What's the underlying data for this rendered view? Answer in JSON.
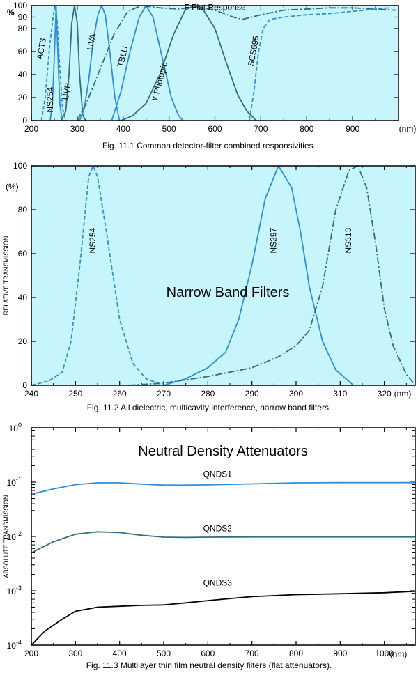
{
  "colors": {
    "plot_bg": "#c6f5fc",
    "frame": "#000000",
    "blue": "#2f8fd8",
    "teal": "#2f6f7f",
    "black": "#000000"
  },
  "chart_data": [
    {
      "id": "fig1",
      "type": "line",
      "caption": "Fig. 11.1  Common detector-filter combined responsivities.",
      "xlabel": "(nm)",
      "ylabel": "%",
      "xlim": [
        200,
        1000
      ],
      "ylim": [
        0,
        100
      ],
      "xticks": [
        200,
        300,
        400,
        500,
        600,
        700,
        800,
        900
      ],
      "yticks": [
        0,
        20,
        40,
        60,
        80,
        90,
        100
      ],
      "series": [
        {
          "name": "ACT3",
          "color": "#2f8fd8",
          "dash": "5,3",
          "label_at": [
            228,
            62
          ],
          "label_rot": -80,
          "points": [
            [
              222,
              0
            ],
            [
              230,
              20
            ],
            [
              240,
              65
            ],
            [
              248,
              92
            ],
            [
              252,
              99
            ],
            [
              256,
              88
            ],
            [
              262,
              45
            ],
            [
              268,
              10
            ],
            [
              275,
              0
            ]
          ]
        },
        {
          "name": "NS254",
          "color": "#2f8fd8",
          "dash": "",
          "label_at": [
            247,
            18
          ],
          "label_rot": -90,
          "points": [
            [
              241,
              0
            ],
            [
              246,
              15
            ],
            [
              250,
              55
            ],
            [
              254,
              99
            ],
            [
              258,
              55
            ],
            [
              262,
              15
            ],
            [
              267,
              0
            ]
          ]
        },
        {
          "name": "UVB",
          "color": "#2f6f7f",
          "dash": "",
          "label_at": [
            283,
            25
          ],
          "label_rot": -80,
          "points": [
            [
              265,
              0
            ],
            [
              275,
              8
            ],
            [
              282,
              40
            ],
            [
              288,
              85
            ],
            [
              294,
              100
            ],
            [
              300,
              85
            ],
            [
              305,
              40
            ],
            [
              312,
              5
            ],
            [
              318,
              0
            ]
          ]
        },
        {
          "name": "UVA",
          "color": "#2f8fd8",
          "dash": "",
          "label_at": [
            337,
            68
          ],
          "label_rot": -80,
          "points": [
            [
              305,
              0
            ],
            [
              315,
              10
            ],
            [
              325,
              35
            ],
            [
              335,
              70
            ],
            [
              345,
              92
            ],
            [
              353,
              100
            ],
            [
              361,
              92
            ],
            [
              371,
              60
            ],
            [
              382,
              20
            ],
            [
              392,
              0
            ]
          ]
        },
        {
          "name": "TBLU",
          "color": "#2f8fd8",
          "dash": "",
          "label_at": [
            405,
            55
          ],
          "label_rot": -75,
          "points": [
            [
              375,
              0
            ],
            [
              395,
              25
            ],
            [
              415,
              60
            ],
            [
              435,
              90
            ],
            [
              450,
              100
            ],
            [
              465,
              90
            ],
            [
              485,
              55
            ],
            [
              505,
              20
            ],
            [
              520,
              5
            ],
            [
              530,
              0
            ]
          ]
        },
        {
          "name": "Y Photopic",
          "color": "#2f6f7f",
          "dash": "",
          "label_at": [
            485,
            33
          ],
          "label_rot": -75,
          "points": [
            [
              395,
              0
            ],
            [
              420,
              4
            ],
            [
              450,
              15
            ],
            [
              480,
              40
            ],
            [
              510,
              75
            ],
            [
              535,
              96
            ],
            [
              555,
              100
            ],
            [
              575,
              96
            ],
            [
              600,
              80
            ],
            [
              625,
              50
            ],
            [
              650,
              22
            ],
            [
              670,
              8
            ],
            [
              690,
              0
            ]
          ]
        },
        {
          "name": "SCS695",
          "color": "#2f8fd8",
          "dash": "6,3",
          "label_at": [
            690,
            60
          ],
          "label_rot": -80,
          "points": [
            [
              675,
              0
            ],
            [
              685,
              25
            ],
            [
              695,
              60
            ],
            [
              705,
              80
            ],
            [
              720,
              88
            ],
            [
              750,
              90
            ],
            [
              800,
              92
            ],
            [
              850,
              93
            ],
            [
              900,
              95
            ],
            [
              950,
              97
            ],
            [
              980,
              98
            ]
          ]
        },
        {
          "name": "F Flat Response",
          "color": "#2f6f7f",
          "dash": "10,3,2,3",
          "label_at": [
            600,
            96
          ],
          "label_rot": 0,
          "points": [
            [
              300,
              0
            ],
            [
              320,
              15
            ],
            [
              350,
              45
            ],
            [
              380,
              75
            ],
            [
              410,
              95
            ],
            [
              440,
              100
            ],
            [
              480,
              98
            ],
            [
              520,
              97
            ],
            [
              560,
              99
            ],
            [
              600,
              96
            ],
            [
              640,
              90
            ],
            [
              660,
              88
            ],
            [
              700,
              92
            ],
            [
              750,
              96
            ],
            [
              800,
              97
            ],
            [
              850,
              98
            ],
            [
              900,
              98
            ],
            [
              950,
              97
            ],
            [
              995,
              96
            ]
          ]
        }
      ]
    },
    {
      "id": "fig2",
      "type": "line",
      "caption": "Fig. 11.2  All dielectric, multicavity interference, narrow band filters.",
      "title": "Narrow Band Filters",
      "xlabel": "(nm)",
      "ylabel": "RELATIVE TRANSMISSION",
      "ylabel_unit": "(%)",
      "xlim": [
        240,
        327
      ],
      "ylim": [
        0,
        100
      ],
      "xticks": [
        240,
        250,
        260,
        270,
        280,
        290,
        300,
        310,
        320
      ],
      "yticks": [
        0,
        20,
        40,
        60,
        80,
        100
      ],
      "series": [
        {
          "name": "NS254",
          "color": "#2f8fd8",
          "dash": "6,3",
          "label_at": [
            254.5,
            66
          ],
          "label_rot": -90,
          "points": [
            [
              240,
              0
            ],
            [
              244,
              2
            ],
            [
              247,
              6
            ],
            [
              249,
              20
            ],
            [
              251,
              55
            ],
            [
              253,
              95
            ],
            [
              254,
              100
            ],
            [
              255,
              95
            ],
            [
              257,
              70
            ],
            [
              260,
              30
            ],
            [
              263,
              10
            ],
            [
              266,
              3
            ],
            [
              270,
              0
            ]
          ]
        },
        {
          "name": "NS297",
          "color": "#2f8fd8",
          "dash": "",
          "label_at": [
            295.5,
            66
          ],
          "label_rot": -90,
          "points": [
            [
              270,
              0
            ],
            [
              275,
              3
            ],
            [
              280,
              8
            ],
            [
              284,
              15
            ],
            [
              287,
              30
            ],
            [
              290,
              55
            ],
            [
              293,
              85
            ],
            [
              296,
              100
            ],
            [
              299,
              90
            ],
            [
              301,
              70
            ],
            [
              303,
              45
            ],
            [
              306,
              20
            ],
            [
              309,
              7
            ],
            [
              313,
              0
            ]
          ]
        },
        {
          "name": "NS313",
          "color": "#2f6f7f",
          "dash": "10,3,2,3",
          "label_at": [
            312.5,
            66
          ],
          "label_rot": -90,
          "points": [
            [
              262,
              0
            ],
            [
              270,
              1
            ],
            [
              280,
              4
            ],
            [
              290,
              8
            ],
            [
              296,
              13
            ],
            [
              300,
              18
            ],
            [
              303,
              25
            ],
            [
              306,
              45
            ],
            [
              309,
              80
            ],
            [
              312,
              98
            ],
            [
              314,
              100
            ],
            [
              316,
              90
            ],
            [
              318,
              65
            ],
            [
              320,
              35
            ],
            [
              322,
              18
            ],
            [
              325,
              5
            ],
            [
              327,
              0
            ]
          ]
        }
      ]
    },
    {
      "id": "fig3",
      "type": "line",
      "scale": "log",
      "caption": "Fig. 11.3  Multilayer thin film neutral density filters (flat attenuators).",
      "title": "Neutral Density Attenuators",
      "xlabel": "(nm)",
      "ylabel": "ABSOLUTE TRANSMISSION",
      "xlim": [
        200,
        1070
      ],
      "ylim": [
        0.0001,
        1
      ],
      "xticks": [
        200,
        300,
        400,
        500,
        600,
        700,
        800,
        900,
        1000
      ],
      "yticks": [
        {
          "v": 0.0001,
          "base": "10",
          "exp": "-4"
        },
        {
          "v": 0.001,
          "base": "10",
          "exp": "-3"
        },
        {
          "v": 0.01,
          "base": "10",
          "exp": "-2"
        },
        {
          "v": 0.1,
          "base": "10",
          "exp": "-1"
        },
        {
          "v": 1,
          "base": "10",
          "exp": "0"
        }
      ],
      "series": [
        {
          "name": "QNDS1",
          "color": "#2f8fd8",
          "dash": "",
          "label_at": [
            622,
            0.125
          ],
          "label_rot": 0,
          "points": [
            [
              200,
              0.06
            ],
            [
              250,
              0.075
            ],
            [
              300,
              0.09
            ],
            [
              350,
              0.097
            ],
            [
              400,
              0.097
            ],
            [
              450,
              0.092
            ],
            [
              500,
              0.088
            ],
            [
              550,
              0.088
            ],
            [
              600,
              0.089
            ],
            [
              700,
              0.093
            ],
            [
              800,
              0.097
            ],
            [
              900,
              0.098
            ],
            [
              1000,
              0.098
            ],
            [
              1070,
              0.098
            ]
          ]
        },
        {
          "name": "QNDS2",
          "color": "#2f6f7f",
          "dash": "",
          "label_at": [
            622,
            0.0125
          ],
          "label_rot": 0,
          "points": [
            [
              200,
              0.005
            ],
            [
              250,
              0.008
            ],
            [
              300,
              0.011
            ],
            [
              350,
              0.0122
            ],
            [
              400,
              0.0118
            ],
            [
              450,
              0.0105
            ],
            [
              500,
              0.0097
            ],
            [
              550,
              0.0096
            ],
            [
              600,
              0.0097
            ],
            [
              700,
              0.0098
            ],
            [
              800,
              0.0098
            ],
            [
              900,
              0.0098
            ],
            [
              1000,
              0.0098
            ],
            [
              1070,
              0.0098
            ]
          ]
        },
        {
          "name": "QNDS3",
          "color": "#000000",
          "dash": "",
          "label_at": [
            622,
            0.00125
          ],
          "label_rot": 0,
          "points": [
            [
              200,
              0.0001
            ],
            [
              230,
              0.00018
            ],
            [
              270,
              0.0003
            ],
            [
              300,
              0.00042
            ],
            [
              350,
              0.0005
            ],
            [
              400,
              0.00052
            ],
            [
              450,
              0.00054
            ],
            [
              500,
              0.00055
            ],
            [
              550,
              0.0006
            ],
            [
              600,
              0.00066
            ],
            [
              650,
              0.00072
            ],
            [
              700,
              0.00078
            ],
            [
              800,
              0.00085
            ],
            [
              900,
              0.00088
            ],
            [
              1000,
              0.00092
            ],
            [
              1070,
              0.00098
            ]
          ]
        }
      ]
    }
  ]
}
